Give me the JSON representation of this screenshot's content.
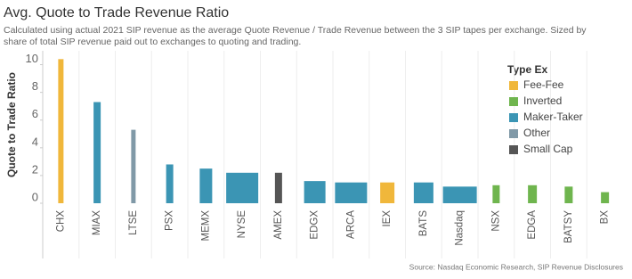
{
  "chart_data": {
    "type": "bar",
    "title": "Avg. Quote to Trade Revenue Ratio",
    "subtitle": [
      "Calculated using actual 2021 SIP revenue as the average Quote Revenue / Trade Revenue between the 3 SIP tapes per exchange. Sized by",
      "share of total SIP revenue paid out to exchanges to quoting and trading."
    ],
    "y_label": "Quote to Trade Ratio",
    "source": "Source: Nasdaq Economic Research, SIP Revenue Disclosures",
    "legend_title": "Type Ex",
    "categories": [
      "CHX",
      "MIAX",
      "LTSE",
      "PSX",
      "MEMX",
      "NYSE",
      "AMEX",
      "EDGX",
      "ARCA",
      "IEX",
      "BATS",
      "Nasdaq",
      "NSX",
      "EDGA",
      "BATSY",
      "BX"
    ],
    "sizes": [
      6,
      8,
      5,
      8,
      14,
      36,
      8,
      24,
      36,
      16,
      22,
      38,
      8,
      10,
      9,
      9
    ],
    "series": [
      {
        "name": "Fee-Fee",
        "color": "#f0b73b",
        "values": [
          10.4,
          null,
          null,
          null,
          null,
          null,
          null,
          null,
          null,
          1.5,
          null,
          null,
          null,
          null,
          null,
          null
        ]
      },
      {
        "name": "Inverted",
        "color": "#6fb54e",
        "values": [
          null,
          null,
          null,
          null,
          null,
          null,
          null,
          null,
          null,
          null,
          null,
          null,
          1.3,
          1.3,
          1.2,
          0.8
        ]
      },
      {
        "name": "Maker-Taker",
        "color": "#3b95b4",
        "values": [
          null,
          7.3,
          null,
          2.8,
          2.5,
          2.2,
          null,
          1.6,
          1.5,
          null,
          1.5,
          1.2,
          null,
          null,
          null,
          null
        ]
      },
      {
        "name": "Other",
        "color": "#8099a7",
        "values": [
          null,
          null,
          5.3,
          null,
          null,
          null,
          null,
          null,
          null,
          null,
          null,
          null,
          null,
          null,
          null,
          null
        ]
      },
      {
        "name": "Small Cap",
        "color": "#555555",
        "values": [
          null,
          null,
          null,
          null,
          null,
          null,
          2.2,
          null,
          null,
          null,
          null,
          null,
          null,
          null,
          null,
          null
        ]
      }
    ],
    "ylim": [
      0,
      11
    ],
    "yticks": [
      0,
      2,
      4,
      6,
      8,
      10
    ]
  }
}
